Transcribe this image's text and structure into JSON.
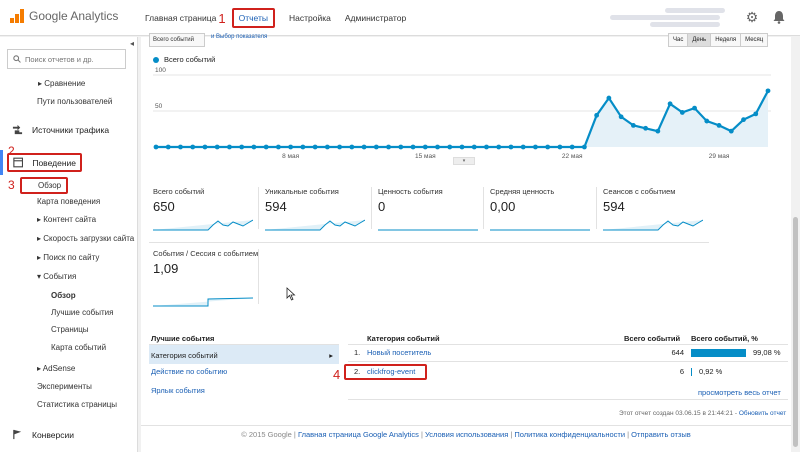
{
  "app": {
    "name": "Google Analytics"
  },
  "nav": {
    "items": [
      "Главная страница",
      "Отчеты",
      "Настройка",
      "Администратор"
    ],
    "annotation": "1"
  },
  "icons": [
    "gear-icon",
    "bell-icon",
    "search-icon",
    "chevron-left-icon",
    "arrow-right-icon",
    "behavior-icon",
    "flag-icon"
  ],
  "colors": {
    "accent": "#058dc7",
    "link": "#1a5fb4",
    "highlight": "#d0211c",
    "logo": "#f57c00"
  },
  "sidebar": {
    "search_placeholder": "Поиск отчетов и др.",
    "items": {
      "comparison": "Сравнение",
      "user_flow": "Пути пользователей",
      "traffic": "Источники трафика",
      "behavior": "Поведение",
      "overview": "Обзор",
      "behavior_flow": "Карта поведения",
      "site_content": "Контент сайта",
      "site_speed": "Скорость загрузки сайта",
      "site_search": "Поиск по сайту",
      "events": "События",
      "events_overview": "Обзор",
      "top_events": "Лучшие события",
      "pages": "Страницы",
      "events_flow": "Карта событий",
      "adsense": "AdSense",
      "experiments": "Эксперименты",
      "page_stats": "Статистика страницы",
      "conversions": "Конверсии"
    },
    "annotations": {
      "behavior": "2",
      "overview": "3"
    }
  },
  "chart_toolbar": {
    "left": "Всего событий",
    "secondary": "Выбор показателя",
    "periods": [
      "Час",
      "День",
      "Неделя",
      "Месяц"
    ],
    "selected_period": "День"
  },
  "chart_data": {
    "type": "line",
    "series": [
      {
        "name": "Всего событий",
        "values": [
          0,
          0,
          0,
          0,
          0,
          0,
          0,
          0,
          0,
          0,
          0,
          0,
          0,
          0,
          0,
          0,
          0,
          0,
          0,
          0,
          0,
          0,
          0,
          0,
          0,
          0,
          0,
          0,
          0,
          0,
          0,
          0,
          0,
          0,
          0,
          0,
          44,
          68,
          42,
          30,
          26,
          22,
          60,
          48,
          54,
          36,
          30,
          22,
          38,
          46,
          78
        ]
      }
    ],
    "x_labels": [
      {
        "text": "8 мая",
        "index": 11
      },
      {
        "text": "15 мая",
        "index": 22
      },
      {
        "text": "22 мая",
        "index": 34
      },
      {
        "text": "29 мая",
        "index": 46
      }
    ],
    "y_ticks": [
      50,
      100
    ],
    "ylim": [
      0,
      100
    ],
    "grid": true
  },
  "metrics": [
    {
      "label": "Всего событий",
      "value": "650"
    },
    {
      "label": "Уникальные события",
      "value": "594"
    },
    {
      "label": "Ценность события",
      "value": "0"
    },
    {
      "label": "Средняя ценность",
      "value": "0,00"
    },
    {
      "label": "Сеансов с событием",
      "value": "594"
    },
    {
      "label": "События / Сессия с событием",
      "value": "1,09"
    }
  ],
  "top_events": {
    "title": "Лучшие события",
    "left_items": [
      "Категория событий",
      "Действие по событию",
      "Ярлык события"
    ],
    "headers": {
      "category": "Категория событий",
      "total": "Всего событий",
      "percent": "Всего событий, %"
    },
    "rows": [
      {
        "num": "1.",
        "name": "Новый посетитель",
        "total": "644",
        "percent": "99,08 %",
        "share": 0.9908
      },
      {
        "num": "2.",
        "name": "clickfrog-event",
        "total": "6",
        "percent": "0,92 %",
        "share": 0.0092
      }
    ],
    "annotation": "4",
    "view_all": "просмотреть весь отчет",
    "generated": "Этот отчет создан 03.06.15 в 21:44:21 -",
    "refresh": "Обновить отчет"
  },
  "footer": {
    "copyright": "© 2015 Google |",
    "links": [
      "Главная страница Google Analytics",
      "Условия использования",
      "Политика конфиденциальности",
      "Отправить отзыв"
    ]
  }
}
